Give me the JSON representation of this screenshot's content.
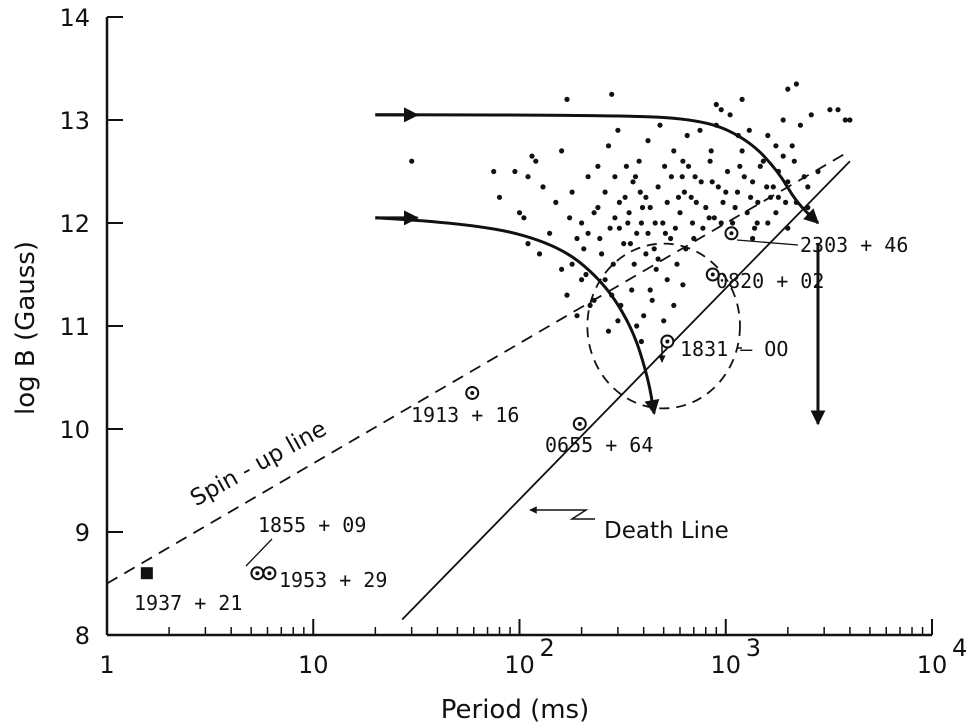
{
  "chart_data": {
    "type": "scatter",
    "xlabel": "Period (ms)",
    "ylabel": "log B (Gauss)",
    "xscale": "log",
    "xlim": [
      1,
      10000
    ],
    "ylim": [
      8,
      14
    ],
    "x_tick_labels": [
      "1",
      "10",
      "10",
      "10",
      "10"
    ],
    "x_tick_exponents": [
      "",
      "",
      "2",
      "3",
      "4"
    ],
    "y_tick_labels": [
      "8",
      "9",
      "10",
      "11",
      "12",
      "13",
      "14"
    ],
    "series": [
      {
        "type": "scatter",
        "points": [
          [
            200,
            12.0
          ],
          [
            215,
            11.9
          ],
          [
            230,
            12.1
          ],
          [
            245,
            11.85
          ],
          [
            260,
            12.3
          ],
          [
            275,
            11.95
          ],
          [
            290,
            12.05
          ],
          [
            305,
            12.2
          ],
          [
            320,
            11.8
          ],
          [
            340,
            12.1
          ],
          [
            355,
            12.4
          ],
          [
            370,
            11.9
          ],
          [
            390,
            12.0
          ],
          [
            410,
            12.25
          ],
          [
            430,
            12.15
          ],
          [
            450,
            11.75
          ],
          [
            470,
            12.35
          ],
          [
            495,
            12.0
          ],
          [
            520,
            12.2
          ],
          [
            545,
            12.45
          ],
          [
            570,
            11.95
          ],
          [
            600,
            12.1
          ],
          [
            630,
            12.3
          ],
          [
            660,
            12.55
          ],
          [
            690,
            12.0
          ],
          [
            720,
            12.2
          ],
          [
            760,
            12.4
          ],
          [
            800,
            12.15
          ],
          [
            840,
            12.6
          ],
          [
            880,
            12.05
          ],
          [
            920,
            12.35
          ],
          [
            970,
            12.2
          ],
          [
            1020,
            12.5
          ],
          [
            1080,
            12.0
          ],
          [
            1140,
            12.3
          ],
          [
            1200,
            12.7
          ],
          [
            1270,
            12.1
          ],
          [
            1350,
            12.4
          ],
          [
            1430,
            12.2
          ],
          [
            1520,
            12.6
          ],
          [
            1600,
            12.0
          ],
          [
            1700,
            12.35
          ],
          [
            1800,
            12.5
          ],
          [
            1950,
            12.2
          ],
          [
            2100,
            12.75
          ],
          [
            330,
            12.55
          ],
          [
            360,
            11.6
          ],
          [
            410,
            11.7
          ],
          [
            460,
            11.55
          ],
          [
            380,
            12.6
          ],
          [
            290,
            12.45
          ],
          [
            250,
            11.7
          ],
          [
            260,
            11.45
          ],
          [
            280,
            11.3
          ],
          [
            310,
            11.2
          ],
          [
            350,
            11.35
          ],
          [
            400,
            11.1
          ],
          [
            440,
            11.25
          ],
          [
            520,
            11.45
          ],
          [
            580,
            11.6
          ],
          [
            640,
            11.75
          ],
          [
            700,
            11.85
          ],
          [
            180,
            11.6
          ],
          [
            170,
            11.3
          ],
          [
            190,
            11.1
          ],
          [
            210,
            11.5
          ],
          [
            230,
            11.25
          ],
          [
            150,
            12.2
          ],
          [
            130,
            12.35
          ],
          [
            110,
            12.45
          ],
          [
            95,
            12.5
          ],
          [
            120,
            12.6
          ],
          [
            160,
            12.7
          ],
          [
            175,
            12.05
          ],
          [
            140,
            11.9
          ],
          [
            125,
            11.7
          ],
          [
            160,
            11.55
          ],
          [
            200,
            11.45
          ],
          [
            220,
            11.2
          ],
          [
            110,
            11.8
          ],
          [
            100,
            12.1
          ],
          [
            240,
            12.55
          ],
          [
            270,
            12.75
          ],
          [
            300,
            12.9
          ],
          [
            420,
            12.8
          ],
          [
            480,
            12.95
          ],
          [
            560,
            12.7
          ],
          [
            650,
            12.85
          ],
          [
            750,
            12.9
          ],
          [
            900,
            12.95
          ],
          [
            1050,
            13.05
          ],
          [
            1300,
            12.9
          ],
          [
            1600,
            12.85
          ],
          [
            1900,
            13.0
          ],
          [
            2300,
            12.95
          ],
          [
            2600,
            13.05
          ],
          [
            3200,
            13.1
          ],
          [
            3800,
            13.0
          ],
          [
            180,
            12.3
          ],
          [
            190,
            11.85
          ],
          [
            345,
            11.8
          ],
          [
            385,
            12.3
          ],
          [
            510,
            11.9
          ],
          [
            615,
            12.45
          ],
          [
            680,
            12.25
          ],
          [
            775,
            11.95
          ],
          [
            860,
            12.4
          ],
          [
            950,
            12.0
          ],
          [
            1110,
            12.15
          ],
          [
            1230,
            12.45
          ],
          [
            1380,
            11.95
          ],
          [
            1470,
            12.55
          ],
          [
            1650,
            12.25
          ],
          [
            1750,
            12.1
          ],
          [
            2000,
            12.4
          ],
          [
            2200,
            12.2
          ],
          [
            2400,
            12.45
          ],
          [
            2000,
            11.95
          ],
          [
            1900,
            12.65
          ],
          [
            1150,
            12.85
          ],
          [
            950,
            13.1
          ],
          [
            850,
            12.7
          ],
          [
            620,
            12.6
          ],
          [
            540,
            11.85
          ],
          [
            470,
            11.65
          ],
          [
            420,
            11.9
          ],
          [
            365,
            12.45
          ],
          [
            325,
            12.25
          ],
          [
            240,
            12.15
          ],
          [
            215,
            12.45
          ],
          [
            205,
            11.75
          ],
          [
            285,
            11.6
          ],
          [
            305,
            11.95
          ],
          [
            335,
            12.0
          ],
          [
            395,
            12.15
          ],
          [
            455,
            12.0
          ],
          [
            505,
            12.55
          ],
          [
            590,
            12.25
          ],
          [
            710,
            12.45
          ],
          [
            830,
            12.05
          ],
          [
            1000,
            12.3
          ],
          [
            1170,
            12.55
          ],
          [
            1320,
            12.25
          ],
          [
            1420,
            12.0
          ],
          [
            1580,
            12.35
          ],
          [
            1800,
            12.25
          ],
          [
            2150,
            12.6
          ],
          [
            2500,
            12.35
          ],
          [
            2800,
            12.5
          ],
          [
            30,
            12.6
          ],
          [
            75,
            12.5
          ],
          [
            80,
            12.25
          ],
          [
            105,
            12.05
          ],
          [
            115,
            12.65
          ],
          [
            170,
            13.2
          ],
          [
            280,
            13.25
          ],
          [
            900,
            13.15
          ],
          [
            1200,
            13.2
          ],
          [
            2000,
            13.3
          ],
          [
            2200,
            13.35
          ],
          [
            3500,
            13.1
          ],
          [
            4000,
            13.0
          ],
          [
            2500,
            12.15
          ],
          [
            1750,
            12.75
          ],
          [
            1350,
            11.85
          ],
          [
            430,
            11.35
          ],
          [
            560,
            11.2
          ],
          [
            620,
            11.4
          ],
          [
            500,
            11.05
          ],
          [
            270,
            10.95
          ],
          [
            300,
            11.05
          ],
          [
            370,
            11.0
          ],
          [
            390,
            10.85
          ]
        ]
      }
    ],
    "curves": [
      {
        "name": "evolution-track-upper",
        "points": [
          [
            20,
            13.05
          ],
          [
            300,
            13.05
          ],
          [
            800,
            13.0
          ],
          [
            1300,
            12.8
          ],
          [
            1800,
            12.5
          ],
          [
            2200,
            12.2
          ],
          [
            2800,
            12.0
          ]
        ]
      },
      {
        "name": "evolution-track-lower",
        "points": [
          [
            20,
            12.05
          ],
          [
            60,
            12.0
          ],
          [
            150,
            11.8
          ],
          [
            250,
            11.45
          ],
          [
            350,
            11.0
          ],
          [
            420,
            10.5
          ],
          [
            450,
            10.15
          ]
        ]
      }
    ],
    "vertical_arrows": [
      {
        "x": 2800,
        "y_from": 11.8,
        "y_to": 10.05
      }
    ],
    "lines": [
      {
        "name": "spin-up-line",
        "style": "dashed",
        "points": [
          [
            1,
            8.5
          ],
          [
            4000,
            12.7
          ]
        ]
      },
      {
        "name": "death-line",
        "style": "solid",
        "points": [
          [
            27,
            8.15
          ],
          [
            4000,
            12.6
          ]
        ]
      }
    ],
    "dashed_circle": {
      "center": [
        500,
        11.0
      ],
      "rx_decades": 0.37,
      "ry": 0.8
    },
    "labeled_pulsars": [
      {
        "label": "1937+21",
        "x": 1.56,
        "y": 8.6,
        "marker": "square",
        "text": "1937 + 21"
      },
      {
        "label": "1855+09",
        "x": 5.36,
        "y": 8.6,
        "marker": "circled-dot",
        "text": "1855 + 09"
      },
      {
        "label": "1953+29",
        "x": 6.13,
        "y": 8.6,
        "marker": "circled-dot",
        "text": "1953 + 29"
      },
      {
        "label": "1913+16",
        "x": 59,
        "y": 10.35,
        "marker": "circled-dot",
        "text": "1913 + 16"
      },
      {
        "label": "0655+64",
        "x": 196,
        "y": 10.05,
        "marker": "circled-dot",
        "text": "0655 + 64"
      },
      {
        "label": "1831-00",
        "x": 521,
        "y": 10.85,
        "marker": "circled-dot",
        "text": "1831  – OO"
      },
      {
        "label": "0820+02",
        "x": 865,
        "y": 11.5,
        "marker": "circled-dot",
        "text": "0820 + 02"
      },
      {
        "label": "2303+46",
        "x": 1066,
        "y": 11.9,
        "marker": "circled-dot",
        "text": "2303 + 46"
      }
    ],
    "annotations": {
      "spin_up_line": "Spin - up line",
      "death_line": "Death  Line"
    },
    "grid": false,
    "legend": "none"
  }
}
